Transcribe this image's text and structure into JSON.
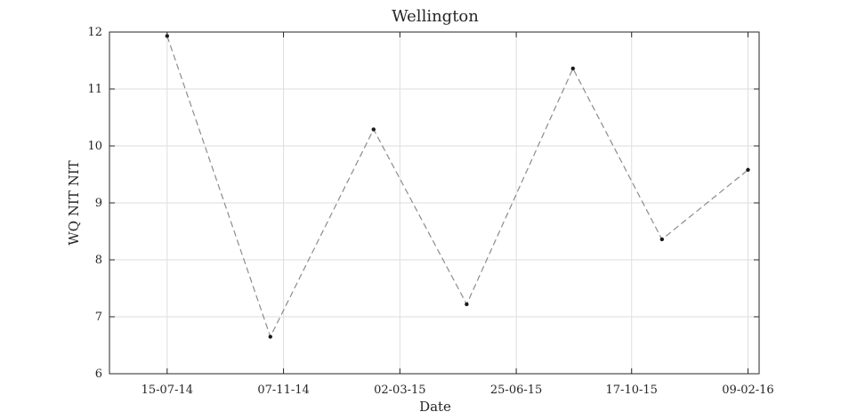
{
  "chart_data": {
    "type": "line",
    "title": "Wellington",
    "xlabel": "Date",
    "ylabel": "WQ NIT NIT",
    "x_tick_labels": [
      "15-07-14",
      "07-11-14",
      "02-03-15",
      "25-06-15",
      "17-10-15",
      "09-02-16"
    ],
    "x_tick_dates": [
      "2014-07-15",
      "2014-11-07",
      "2015-03-02",
      "2015-06-25",
      "2015-10-17",
      "2016-02-09"
    ],
    "xlim": [
      "2014-05-19",
      "2016-02-20"
    ],
    "ylim": [
      6,
      12
    ],
    "y_ticks": [
      6,
      7,
      8,
      9,
      10,
      11,
      12
    ],
    "grid": true,
    "series": [
      {
        "x": [
          "2014-07-15",
          "2014-10-25",
          "2015-02-04",
          "2015-05-07",
          "2015-08-20",
          "2015-11-16",
          "2016-02-09"
        ],
        "y": [
          11.93,
          6.65,
          10.29,
          7.22,
          11.36,
          8.36,
          9.58
        ]
      }
    ],
    "colors": {
      "line": "#8c8c8c",
      "marker": "#1a1a1a",
      "grid": "#dedede",
      "axis": "#262626"
    }
  }
}
